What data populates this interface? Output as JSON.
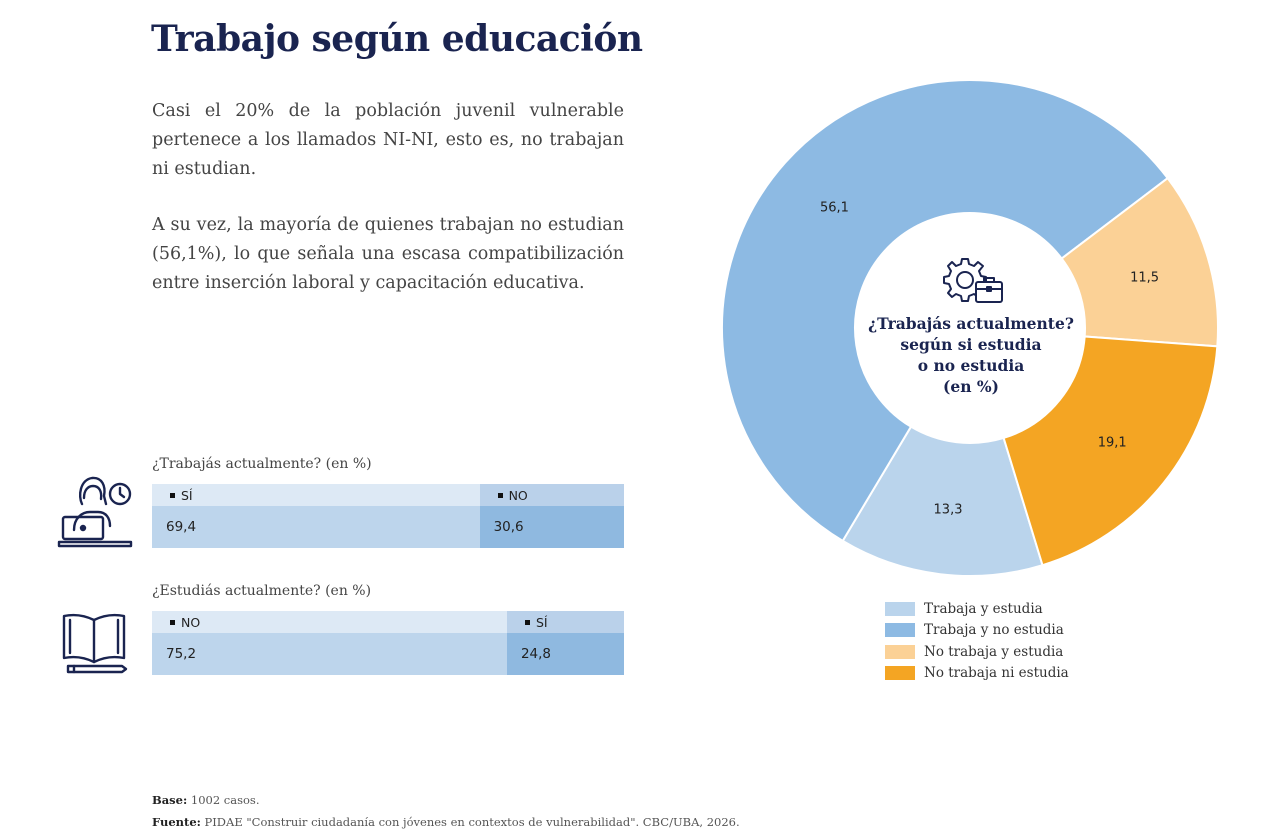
{
  "title": "Trabajo según educación",
  "paragraphs": [
    "Casi el 20% de la población juvenil vulnerable pertenece a los llamados NI-NI, esto es, no trabajan ni estudian.",
    "A su vez, la mayoría de quienes trabajan no estudian (56,1%), lo que señala una escasa compatibilización entre inserción laboral y capacitación educativa."
  ],
  "work_table": {
    "label": "¿Trabajás actualmente?  (en %)",
    "columns": [
      {
        "header": "SÍ",
        "value": "69,4",
        "share": 0.694
      },
      {
        "header": "NO",
        "value": "30,6",
        "share": 0.306
      }
    ]
  },
  "study_table": {
    "label": "¿Estudiás actualmente? (en %)",
    "columns": [
      {
        "header": "NO",
        "value": "75,2",
        "share": 0.752
      },
      {
        "header": "SÍ",
        "value": "24,8",
        "share": 0.248
      }
    ]
  },
  "icons": {
    "worker": "person-at-laptop-with-clock-icon",
    "book": "open-book-with-pencil-icon",
    "center": "gear-briefcase-icon"
  },
  "chart_data": {
    "type": "pie",
    "donut": true,
    "center_title": [
      "¿Trabajás actualmente?",
      "según si estudia",
      "o no estudia",
      "(en %)"
    ],
    "slices": [
      {
        "name": "Trabaja y estudia",
        "value": 13.3,
        "label": "13,3",
        "color": "#bad4ec"
      },
      {
        "name": "Trabaja y no estudia",
        "value": 56.1,
        "label": "56,1",
        "color": "#8dbae3"
      },
      {
        "name": "No trabaja y estudia",
        "value": 11.5,
        "label": "11,5",
        "color": "#fbd196"
      },
      {
        "name": "No trabaja ni estudia",
        "value": 19.1,
        "label": "19,1",
        "color": "#f4a523"
      }
    ],
    "legend_position": "bottom"
  },
  "footer": {
    "base_label": "Base:",
    "base_text": " 1002 casos.",
    "source_label": "Fuente:",
    "source_text": " PIDAE \"Construir ciudadanía con jóvenes en contextos de vulnerabilidad\". CBC/UBA, 2026."
  }
}
